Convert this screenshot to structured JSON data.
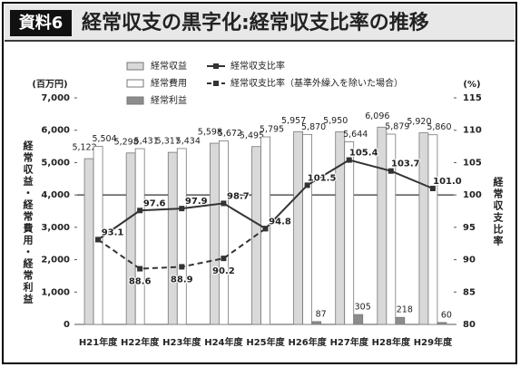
{
  "chart_data": {
    "type": "bar_line",
    "label": "資料6",
    "title": "経常収支の黒字化:経常収支比率の推移",
    "y_label": "(百万円)",
    "y_title": "経常収益・経常費用・経常利益",
    "y2_label": "(%)",
    "y2_title": "経常収支比率",
    "categories": [
      "H21年度",
      "H22年度",
      "H23年度",
      "H24年度",
      "H25年度",
      "H26年度",
      "H27年度",
      "H28年度",
      "H29年度"
    ],
    "series": [
      {
        "name": "経常収益",
        "kind": "bar",
        "color": "#d9d9d9",
        "values": [
          5122,
          5298,
          5317,
          5598,
          5495,
          5957,
          5950,
          6096,
          5920
        ],
        "value_labels": [
          "5,122",
          "5,298",
          "5,317",
          "5,598",
          "5,495",
          "5,957",
          "5,950",
          "6,096",
          "5,920"
        ]
      },
      {
        "name": "経常費用",
        "kind": "bar",
        "color": "#ffffff",
        "values": [
          5504,
          5431,
          5434,
          5672,
          5795,
          5870,
          5644,
          5879,
          5860
        ],
        "value_labels": [
          "5,504",
          "5,431",
          "5,434",
          "5,672",
          "5,795",
          "5,870",
          "5,644",
          "5,879",
          "5,860"
        ]
      },
      {
        "name": "経常利益",
        "kind": "bar",
        "color": "#8c8c8c",
        "values": [
          null,
          null,
          null,
          null,
          null,
          87,
          305,
          218,
          60
        ],
        "value_labels": [
          null,
          null,
          null,
          null,
          null,
          "87",
          "305",
          "218",
          "60"
        ]
      },
      {
        "name": "経常収支比率",
        "kind": "line",
        "axis": "y2",
        "color": "#333333",
        "dashed": false,
        "values": [
          93.1,
          97.6,
          97.9,
          98.7,
          94.8,
          101.5,
          105.4,
          103.7,
          101.0
        ],
        "value_labels": [
          "93.1",
          "97.6",
          "97.9",
          "98.7",
          "94.8",
          "101.5",
          "105.4",
          "103.7",
          "101.0"
        ]
      },
      {
        "name": "経常収支比率（基準外繰入を除いた場合）",
        "kind": "line",
        "axis": "y2",
        "color": "#333333",
        "dashed": true,
        "values": [
          93.1,
          88.6,
          88.9,
          90.2,
          94.8,
          null,
          null,
          null,
          null
        ],
        "value_labels": [
          null,
          "88.6",
          "88.9",
          "90.2",
          null,
          null,
          null,
          null,
          null
        ]
      }
    ],
    "ylim": [
      0,
      7000
    ],
    "yticks": [
      0,
      {
        "value": 1000,
        "label": "1,000"
      },
      {
        "value": 2000,
        "label": "2,000"
      },
      {
        "value": 3000,
        "label": "3,000"
      },
      {
        "value": 4000,
        "label": "4,000"
      },
      {
        "value": 5000,
        "label": "5,000"
      },
      {
        "value": 6000,
        "label": "6,000"
      },
      {
        "value": 7000,
        "label": "7,000"
      }
    ],
    "y2lim": [
      80,
      115
    ],
    "y2ticks": [
      80,
      85,
      90,
      95,
      100,
      105,
      110,
      115
    ],
    "y2_reference_line": 100
  }
}
